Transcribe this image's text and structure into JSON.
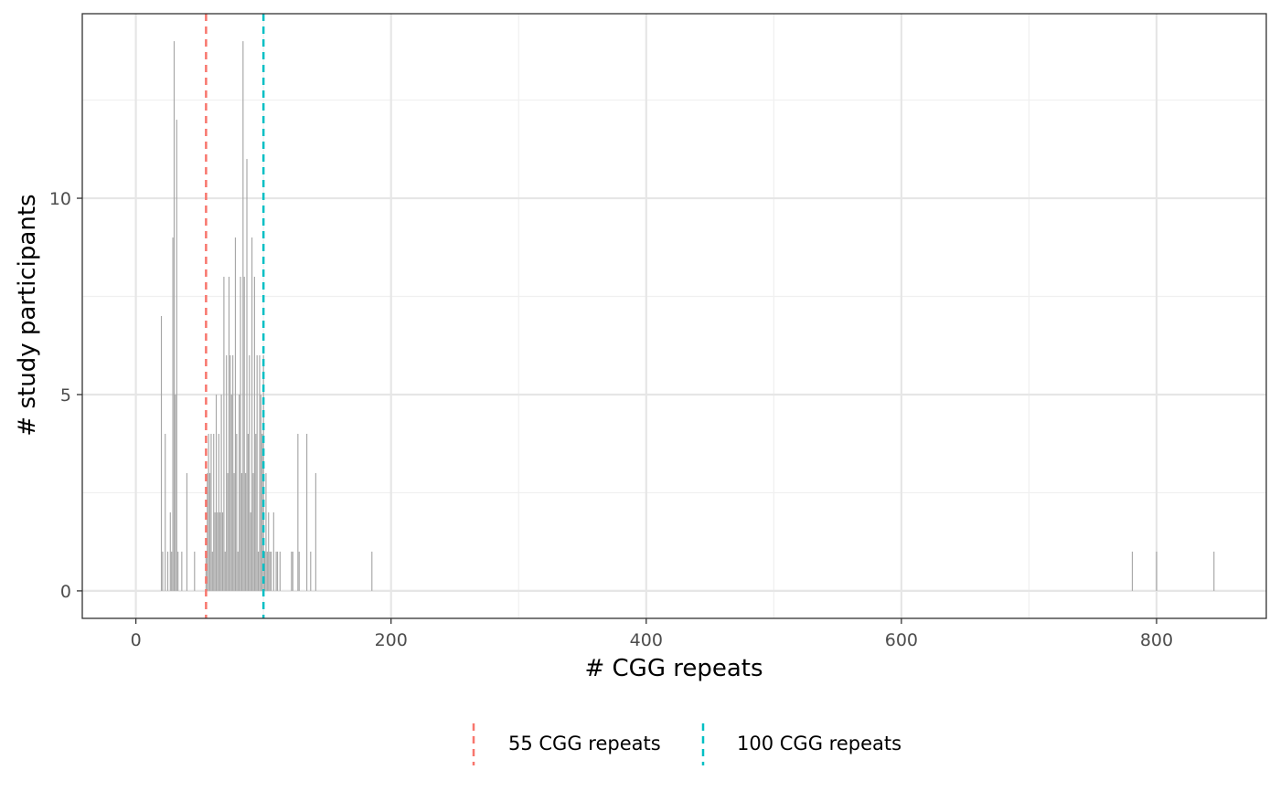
{
  "chart_data": {
    "type": "bar",
    "xlabel": "# CGG repeats",
    "ylabel": "# study participants",
    "xlim": [
      -42,
      886
    ],
    "ylim": [
      -0.7,
      14.7
    ],
    "x_ticks": [
      0,
      200,
      400,
      600,
      800
    ],
    "x_tick_labels": [
      "0",
      "200",
      "400",
      "600",
      "800"
    ],
    "y_ticks": [
      0,
      5,
      10
    ],
    "y_tick_labels": [
      "0",
      "5",
      "10"
    ],
    "x_minor_ticks": [
      100,
      300,
      500,
      700
    ],
    "y_minor_ticks": [
      2.5,
      7.5,
      12.5
    ],
    "grid": true,
    "legend_position": "bottom",
    "bar_color": "#a6a6a6",
    "points": [
      {
        "x": 20,
        "y": 7
      },
      {
        "x": 21,
        "y": 1
      },
      {
        "x": 23,
        "y": 4
      },
      {
        "x": 25,
        "y": 1
      },
      {
        "x": 27,
        "y": 2
      },
      {
        "x": 28,
        "y": 1
      },
      {
        "x": 29,
        "y": 9
      },
      {
        "x": 30,
        "y": 14
      },
      {
        "x": 31,
        "y": 5
      },
      {
        "x": 32,
        "y": 12
      },
      {
        "x": 33,
        "y": 1
      },
      {
        "x": 36,
        "y": 1
      },
      {
        "x": 40,
        "y": 3
      },
      {
        "x": 46,
        "y": 1
      },
      {
        "x": 55,
        "y": 1
      },
      {
        "x": 56,
        "y": 3
      },
      {
        "x": 57,
        "y": 4
      },
      {
        "x": 58,
        "y": 3
      },
      {
        "x": 59,
        "y": 4
      },
      {
        "x": 60,
        "y": 1
      },
      {
        "x": 61,
        "y": 4
      },
      {
        "x": 62,
        "y": 2
      },
      {
        "x": 63,
        "y": 5
      },
      {
        "x": 64,
        "y": 2
      },
      {
        "x": 65,
        "y": 4
      },
      {
        "x": 66,
        "y": 2
      },
      {
        "x": 67,
        "y": 5
      },
      {
        "x": 68,
        "y": 2
      },
      {
        "x": 69,
        "y": 8
      },
      {
        "x": 70,
        "y": 1
      },
      {
        "x": 71,
        "y": 6
      },
      {
        "x": 72,
        "y": 3
      },
      {
        "x": 73,
        "y": 8
      },
      {
        "x": 74,
        "y": 6
      },
      {
        "x": 75,
        "y": 5
      },
      {
        "x": 76,
        "y": 6
      },
      {
        "x": 77,
        "y": 3
      },
      {
        "x": 78,
        "y": 9
      },
      {
        "x": 79,
        "y": 4
      },
      {
        "x": 80,
        "y": 1
      },
      {
        "x": 81,
        "y": 5
      },
      {
        "x": 82,
        "y": 8
      },
      {
        "x": 83,
        "y": 3
      },
      {
        "x": 84,
        "y": 14
      },
      {
        "x": 85,
        "y": 8
      },
      {
        "x": 86,
        "y": 3
      },
      {
        "x": 87,
        "y": 11
      },
      {
        "x": 88,
        "y": 4
      },
      {
        "x": 89,
        "y": 6
      },
      {
        "x": 90,
        "y": 2
      },
      {
        "x": 91,
        "y": 9
      },
      {
        "x": 92,
        "y": 3
      },
      {
        "x": 93,
        "y": 8
      },
      {
        "x": 94,
        "y": 4
      },
      {
        "x": 95,
        "y": 6
      },
      {
        "x": 96,
        "y": 1
      },
      {
        "x": 97,
        "y": 6
      },
      {
        "x": 98,
        "y": 5
      },
      {
        "x": 99,
        "y": 4
      },
      {
        "x": 100,
        "y": 6
      },
      {
        "x": 101,
        "y": 1
      },
      {
        "x": 102,
        "y": 3
      },
      {
        "x": 103,
        "y": 1
      },
      {
        "x": 104,
        "y": 2
      },
      {
        "x": 105,
        "y": 1
      },
      {
        "x": 106,
        "y": 1
      },
      {
        "x": 108,
        "y": 2
      },
      {
        "x": 110,
        "y": 1
      },
      {
        "x": 111,
        "y": 1
      },
      {
        "x": 113,
        "y": 1
      },
      {
        "x": 122,
        "y": 1
      },
      {
        "x": 123,
        "y": 1
      },
      {
        "x": 127,
        "y": 4
      },
      {
        "x": 128,
        "y": 1
      },
      {
        "x": 134,
        "y": 4
      },
      {
        "x": 137,
        "y": 1
      },
      {
        "x": 141,
        "y": 3
      },
      {
        "x": 185,
        "y": 1
      },
      {
        "x": 781,
        "y": 1
      },
      {
        "x": 800,
        "y": 1
      },
      {
        "x": 845,
        "y": 1
      }
    ],
    "reference_lines": [
      {
        "x": 55,
        "name": "55 CGG repeats",
        "color": "#f8766d"
      },
      {
        "x": 100,
        "name": "100 CGG repeats",
        "color": "#00bfc4"
      }
    ]
  }
}
